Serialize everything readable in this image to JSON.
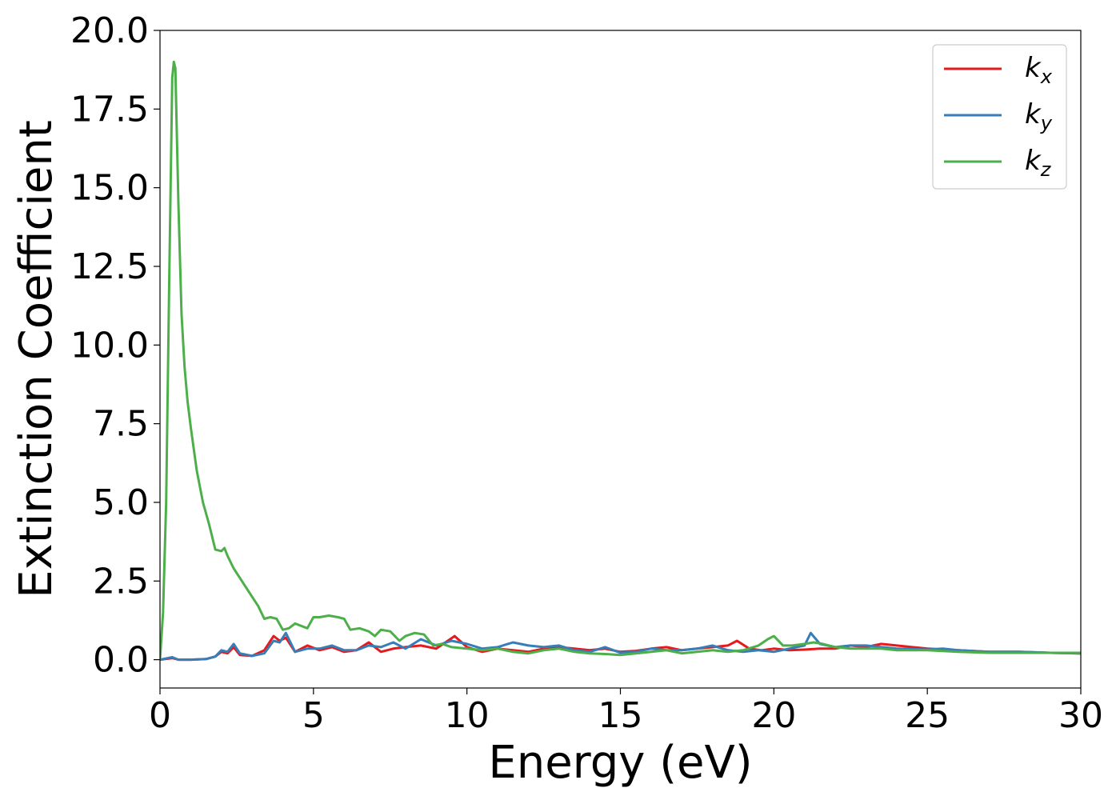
{
  "chart_data": {
    "type": "line",
    "title": "",
    "xlabel": "Energy (eV)",
    "ylabel": "Extinction Coefficient",
    "xlim": [
      0,
      30
    ],
    "ylim": [
      -0.9,
      20.0
    ],
    "xticks": [
      0,
      5,
      10,
      15,
      20,
      25,
      30
    ],
    "xtick_labels": [
      "0",
      "5",
      "10",
      "15",
      "20",
      "25",
      "30"
    ],
    "yticks": [
      0.0,
      2.5,
      5.0,
      7.5,
      10.0,
      12.5,
      15.0,
      17.5,
      20.0
    ],
    "ytick_labels": [
      "0.0",
      "2.5",
      "5.0",
      "7.5",
      "10.0",
      "12.5",
      "15.0",
      "17.5",
      "20.0"
    ],
    "grid": false,
    "legend_position": "top-right",
    "series": [
      {
        "name": "k",
        "subscript": "x",
        "color": "#e41a1c",
        "x": [
          0,
          0.4,
          0.6,
          1.0,
          1.5,
          1.8,
          2.0,
          2.2,
          2.4,
          2.6,
          3.0,
          3.4,
          3.7,
          3.9,
          4.1,
          4.4,
          4.8,
          5.2,
          5.6,
          6.0,
          6.4,
          6.8,
          7.2,
          7.6,
          8.0,
          8.5,
          9.0,
          9.3,
          9.6,
          10.0,
          10.5,
          11.0,
          11.5,
          12.0,
          12.5,
          13.0,
          13.5,
          14.0,
          14.5,
          15.0,
          15.5,
          16.0,
          16.5,
          17.0,
          17.5,
          18.0,
          18.5,
          18.8,
          19.2,
          19.6,
          20.0,
          20.5,
          21.0,
          21.5,
          22.0,
          22.5,
          23.0,
          23.5,
          24.0,
          25.0,
          26.0,
          27.0,
          28.0,
          29.0,
          30.0
        ],
        "y": [
          0.0,
          0.05,
          0.0,
          0.0,
          0.02,
          0.1,
          0.25,
          0.2,
          0.4,
          0.15,
          0.12,
          0.3,
          0.75,
          0.6,
          0.7,
          0.25,
          0.45,
          0.3,
          0.4,
          0.25,
          0.3,
          0.55,
          0.25,
          0.35,
          0.4,
          0.45,
          0.35,
          0.55,
          0.75,
          0.4,
          0.25,
          0.35,
          0.3,
          0.25,
          0.35,
          0.4,
          0.35,
          0.3,
          0.35,
          0.25,
          0.28,
          0.35,
          0.4,
          0.3,
          0.35,
          0.4,
          0.45,
          0.6,
          0.35,
          0.3,
          0.35,
          0.3,
          0.32,
          0.35,
          0.35,
          0.45,
          0.4,
          0.5,
          0.45,
          0.35,
          0.3,
          0.25,
          0.25,
          0.22,
          0.2
        ]
      },
      {
        "name": "k",
        "subscript": "y",
        "color": "#377eb8",
        "x": [
          0,
          0.4,
          0.6,
          1.0,
          1.5,
          1.8,
          2.0,
          2.2,
          2.4,
          2.6,
          3.0,
          3.4,
          3.7,
          3.9,
          4.1,
          4.4,
          4.8,
          5.2,
          5.6,
          6.0,
          6.4,
          6.8,
          7.2,
          7.6,
          8.0,
          8.5,
          9.0,
          9.5,
          10.0,
          10.5,
          11.0,
          11.5,
          12.0,
          12.5,
          13.0,
          13.5,
          14.0,
          14.5,
          15.0,
          15.5,
          16.0,
          16.5,
          17.0,
          17.5,
          18.0,
          18.5,
          19.0,
          19.5,
          20.0,
          20.5,
          21.0,
          21.2,
          21.5,
          22.0,
          22.5,
          23.0,
          23.5,
          24.0,
          25.0,
          25.5,
          26.0,
          27.0,
          28.0,
          29.0,
          30.0
        ],
        "y": [
          0.0,
          0.08,
          0.0,
          0.0,
          0.02,
          0.1,
          0.3,
          0.25,
          0.5,
          0.2,
          0.12,
          0.2,
          0.6,
          0.55,
          0.85,
          0.25,
          0.35,
          0.35,
          0.45,
          0.3,
          0.3,
          0.45,
          0.4,
          0.55,
          0.35,
          0.65,
          0.45,
          0.6,
          0.5,
          0.35,
          0.4,
          0.55,
          0.45,
          0.4,
          0.45,
          0.3,
          0.25,
          0.4,
          0.22,
          0.25,
          0.35,
          0.3,
          0.3,
          0.35,
          0.45,
          0.3,
          0.25,
          0.3,
          0.25,
          0.35,
          0.45,
          0.85,
          0.5,
          0.4,
          0.45,
          0.45,
          0.4,
          0.35,
          0.32,
          0.35,
          0.3,
          0.25,
          0.25,
          0.22,
          0.2
        ]
      },
      {
        "name": "k",
        "subscript": "z",
        "color": "#4daf4a",
        "x": [
          0,
          0.1,
          0.2,
          0.3,
          0.4,
          0.45,
          0.5,
          0.6,
          0.7,
          0.8,
          0.9,
          1.0,
          1.2,
          1.4,
          1.6,
          1.8,
          2.0,
          2.1,
          2.2,
          2.4,
          2.6,
          2.8,
          3.0,
          3.2,
          3.4,
          3.6,
          3.8,
          4.0,
          4.2,
          4.4,
          4.8,
          5.0,
          5.2,
          5.5,
          5.8,
          6.0,
          6.2,
          6.5,
          6.8,
          7.0,
          7.2,
          7.5,
          7.8,
          8.0,
          8.3,
          8.6,
          8.9,
          9.2,
          9.5,
          10.0,
          10.5,
          11.0,
          11.5,
          12.0,
          12.5,
          13.0,
          13.5,
          14.0,
          14.5,
          15.0,
          15.5,
          16.0,
          16.5,
          17.0,
          17.5,
          18.0,
          18.5,
          19.0,
          19.5,
          19.8,
          20.0,
          20.3,
          20.6,
          21.0,
          21.3,
          21.6,
          22.0,
          22.5,
          23.0,
          23.5,
          24.0,
          25.0,
          26.0,
          27.0,
          28.0,
          29.0,
          30.0
        ],
        "y": [
          0.0,
          1.5,
          5.0,
          12.0,
          18.5,
          19.0,
          18.8,
          14.5,
          11.0,
          9.3,
          8.2,
          7.4,
          6.0,
          5.0,
          4.3,
          3.5,
          3.45,
          3.55,
          3.3,
          2.9,
          2.6,
          2.3,
          2.0,
          1.7,
          1.3,
          1.35,
          1.3,
          0.95,
          1.0,
          1.15,
          1.0,
          1.35,
          1.35,
          1.4,
          1.35,
          1.3,
          0.95,
          1.0,
          0.9,
          0.75,
          0.95,
          0.9,
          0.6,
          0.75,
          0.85,
          0.8,
          0.45,
          0.5,
          0.4,
          0.35,
          0.3,
          0.35,
          0.25,
          0.2,
          0.3,
          0.35,
          0.25,
          0.2,
          0.18,
          0.15,
          0.2,
          0.25,
          0.3,
          0.2,
          0.25,
          0.3,
          0.25,
          0.3,
          0.45,
          0.65,
          0.75,
          0.45,
          0.45,
          0.5,
          0.55,
          0.5,
          0.4,
          0.35,
          0.35,
          0.35,
          0.3,
          0.3,
          0.25,
          0.22,
          0.22,
          0.22,
          0.22
        ]
      }
    ]
  }
}
